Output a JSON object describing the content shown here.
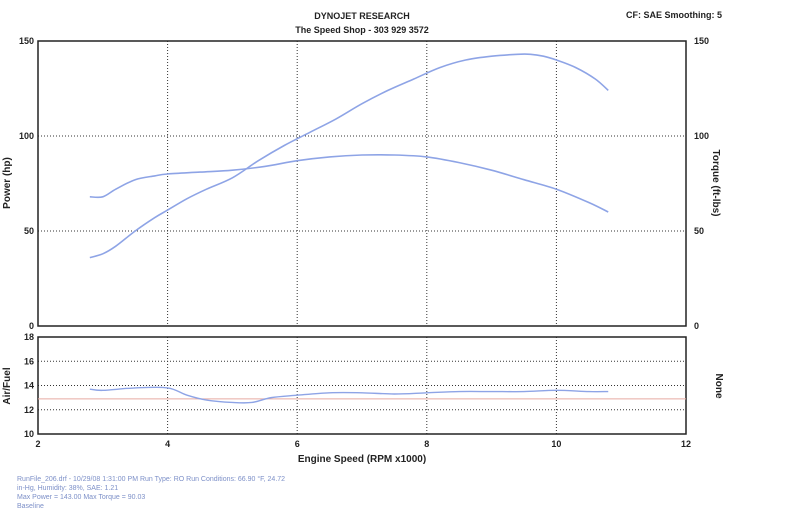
{
  "header": {
    "company": "DYNOJET RESEARCH",
    "shop": "The Speed Shop - 303 929 3572",
    "settings": "CF: SAE  Smoothing: 5"
  },
  "footer": {
    "line1": "RunFile_206.drf - 10/29/08 1:31:00 PM  Run Type: RO  Run Conditions: 66.90 °F, 24.72",
    "line2": "in-Hg,  Humidity: 38%, SAE: 1.21",
    "line3": "Max Power = 143.00  Max Torque = 90.03",
    "line4": "Baseline"
  },
  "chart_data": [
    {
      "type": "line",
      "ylabel": "Power (hp)",
      "y2label": "Torque (ft-lbs)",
      "xlim": [
        2,
        12
      ],
      "ylim": [
        0,
        150
      ],
      "y2lim": [
        0,
        150
      ],
      "yticks": [
        "150",
        "100",
        "50",
        "0"
      ],
      "y2ticks": [
        "150",
        "100",
        "50",
        "0"
      ],
      "grid": true,
      "series": [
        {
          "name": "Power (hp)",
          "color": "#8ea4e6",
          "axis": "left",
          "x": [
            2.8,
            3.0,
            3.2,
            3.5,
            3.8,
            4.0,
            4.3,
            4.6,
            5.0,
            5.4,
            5.8,
            6.2,
            6.6,
            7.0,
            7.4,
            7.8,
            8.2,
            8.6,
            9.0,
            9.4,
            9.6,
            9.8,
            10.0,
            10.3,
            10.6,
            10.8
          ],
          "values": [
            36,
            38,
            42,
            50,
            57,
            61,
            67,
            72,
            78,
            87,
            95,
            102,
            109,
            117,
            124,
            130,
            136,
            140,
            142,
            143,
            143,
            142,
            140,
            136,
            130,
            124
          ]
        },
        {
          "name": "Torque (ft-lbs)",
          "color": "#8ea4e6",
          "axis": "right",
          "x": [
            2.8,
            3.0,
            3.2,
            3.5,
            3.8,
            4.0,
            4.5,
            5.0,
            5.5,
            6.0,
            6.5,
            7.0,
            7.5,
            8.0,
            8.5,
            9.0,
            9.5,
            10.0,
            10.5,
            10.8
          ],
          "values": [
            68,
            68,
            72,
            77,
            79,
            80,
            81,
            82,
            84,
            87,
            89,
            90,
            90,
            89,
            86,
            82,
            77,
            72,
            65,
            60
          ]
        }
      ]
    },
    {
      "type": "line",
      "xlabel": "Engine Speed (RPM x1000)",
      "ylabel": "Air/Fuel",
      "y2label": "None",
      "xlim": [
        2,
        12
      ],
      "ylim": [
        10,
        18
      ],
      "xticks": [
        "2",
        "4",
        "6",
        "8",
        "10",
        "12"
      ],
      "yticks": [
        "18",
        "16",
        "14",
        "12",
        "10"
      ],
      "grid": true,
      "reference_line": {
        "value": 12.9,
        "color": "#e8aaa2"
      },
      "series": [
        {
          "name": "Air/Fuel",
          "color": "#8ea4e6",
          "x": [
            2.8,
            3.0,
            3.5,
            4.0,
            4.3,
            4.6,
            5.0,
            5.3,
            5.6,
            6.0,
            6.5,
            7.0,
            7.5,
            8.0,
            8.5,
            9.0,
            9.5,
            10.0,
            10.5,
            10.8
          ],
          "values": [
            13.7,
            13.6,
            13.8,
            13.8,
            13.2,
            12.8,
            12.6,
            12.6,
            13.0,
            13.2,
            13.4,
            13.4,
            13.3,
            13.4,
            13.5,
            13.5,
            13.5,
            13.6,
            13.5,
            13.5
          ]
        }
      ]
    }
  ]
}
